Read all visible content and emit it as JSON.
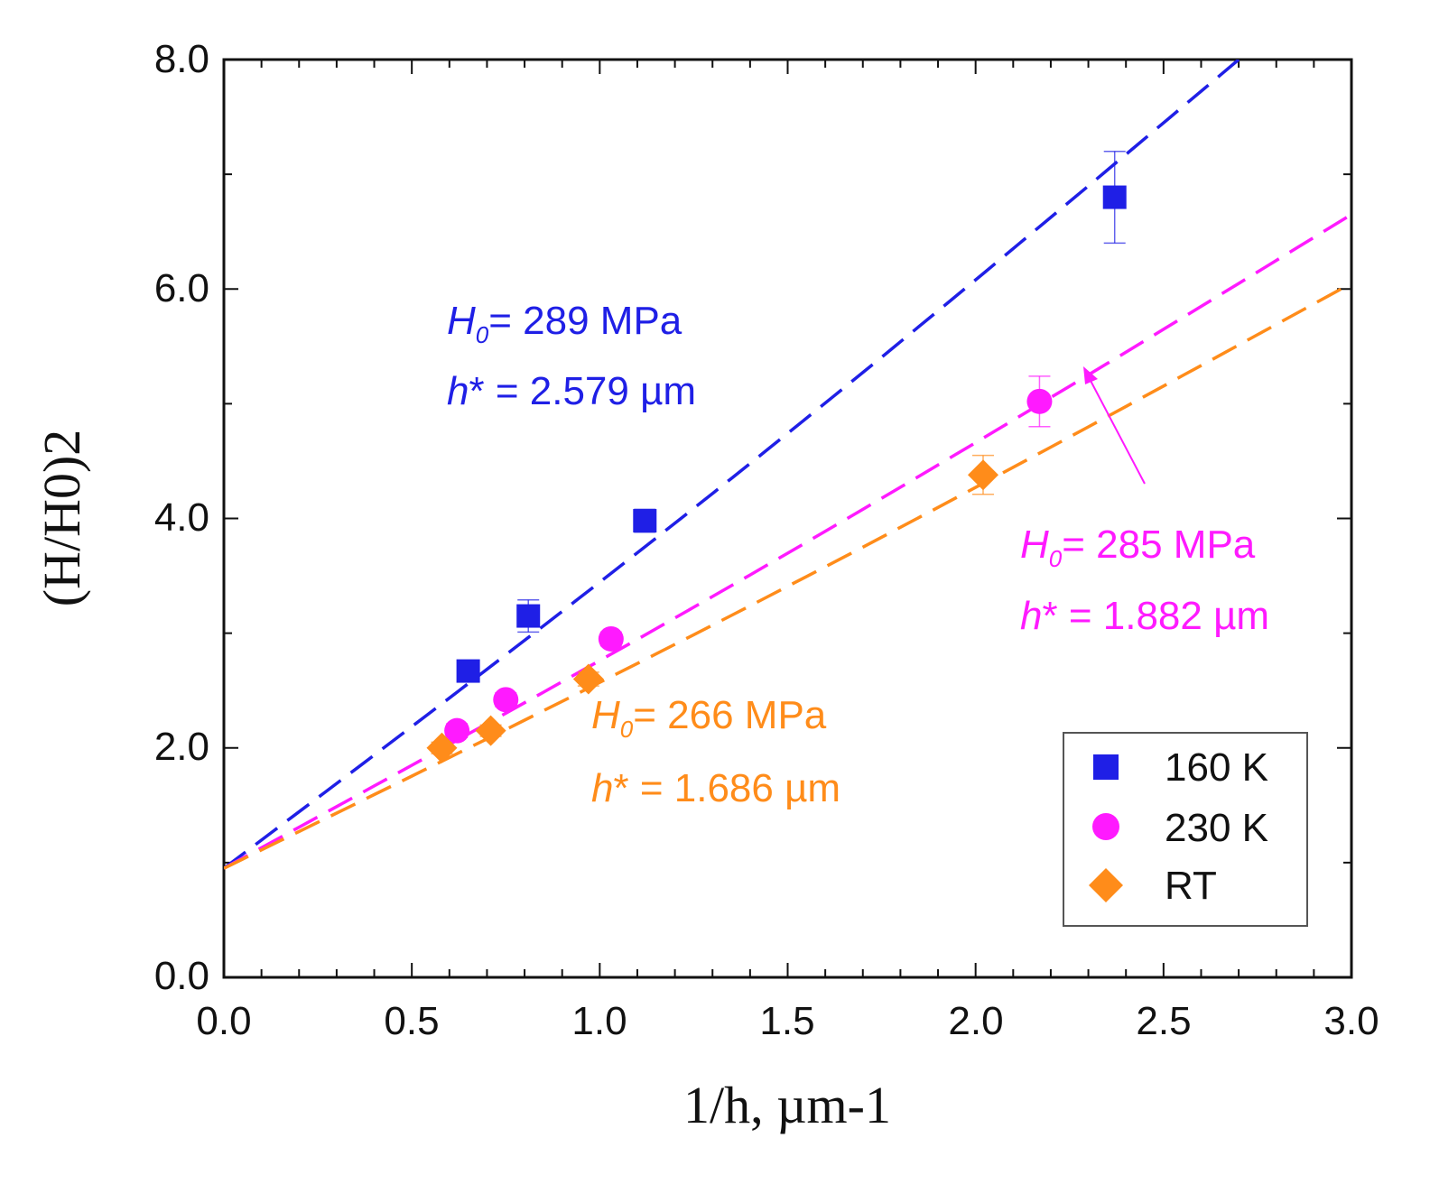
{
  "chart_data": {
    "type": "scatter",
    "xlabel": "1/h, µm-1",
    "ylabel": "(H/H0)2",
    "xlim": [
      0,
      3
    ],
    "ylim": [
      0,
      8
    ],
    "x_ticks": [
      0,
      0.5,
      1,
      1.5,
      2,
      2.5,
      3
    ],
    "y_ticks": [
      0,
      2,
      4,
      6,
      8
    ],
    "x_tick_labels": [
      "0.0",
      "0.5",
      "1.0",
      "1.5",
      "2.0",
      "2.5",
      "3.0"
    ],
    "y_tick_labels": [
      "0.0",
      "2.0",
      "4.0",
      "6.0",
      "8.0"
    ],
    "grid": false,
    "legend_position": "bottom-right",
    "series": [
      {
        "name": "160 K",
        "color": "#1f1fe6",
        "marker": "square",
        "points": [
          {
            "x": 0.65,
            "y": 2.67,
            "err": 0.06
          },
          {
            "x": 0.81,
            "y": 3.15,
            "err": 0.14
          },
          {
            "x": 1.12,
            "y": 3.98,
            "err": 0.1
          },
          {
            "x": 2.37,
            "y": 6.8,
            "err": 0.4
          }
        ],
        "fit": {
          "x_end": 2.7,
          "y_end": 8.0
        },
        "annotation": {
          "h0_label": "= 289 MPa",
          "hstar_label": "* = 2.579 µm"
        }
      },
      {
        "name": "230 K",
        "color": "#ff1aff",
        "marker": "circle",
        "points": [
          {
            "x": 0.62,
            "y": 2.15,
            "err": 0.06
          },
          {
            "x": 0.75,
            "y": 2.42,
            "err": 0.06
          },
          {
            "x": 1.03,
            "y": 2.95,
            "err": 0.06
          },
          {
            "x": 2.17,
            "y": 5.02,
            "err": 0.22
          }
        ],
        "fit": {
          "x_end": 3.0,
          "y_end": 6.65
        },
        "annotation": {
          "h0_label": "= 285 MPa",
          "hstar_label": "* = 1.882 µm"
        }
      },
      {
        "name": "RT",
        "color": "#ff8c1a",
        "marker": "diamond",
        "points": [
          {
            "x": 0.58,
            "y": 2.0,
            "err": 0.05
          },
          {
            "x": 0.71,
            "y": 2.15,
            "err": 0.05
          },
          {
            "x": 0.97,
            "y": 2.6,
            "err": 0.06
          },
          {
            "x": 2.02,
            "y": 4.38,
            "err": 0.17
          }
        ],
        "fit": {
          "x_end": 3.0,
          "y_end": 6.05
        },
        "annotation": {
          "h0_label": "= 266 MPa",
          "hstar_label": "* = 1.686 µm"
        }
      }
    ],
    "fit_intercept": 0.95,
    "annotation_symbols": {
      "H": "H",
      "sub": "0",
      "h": "h"
    }
  }
}
